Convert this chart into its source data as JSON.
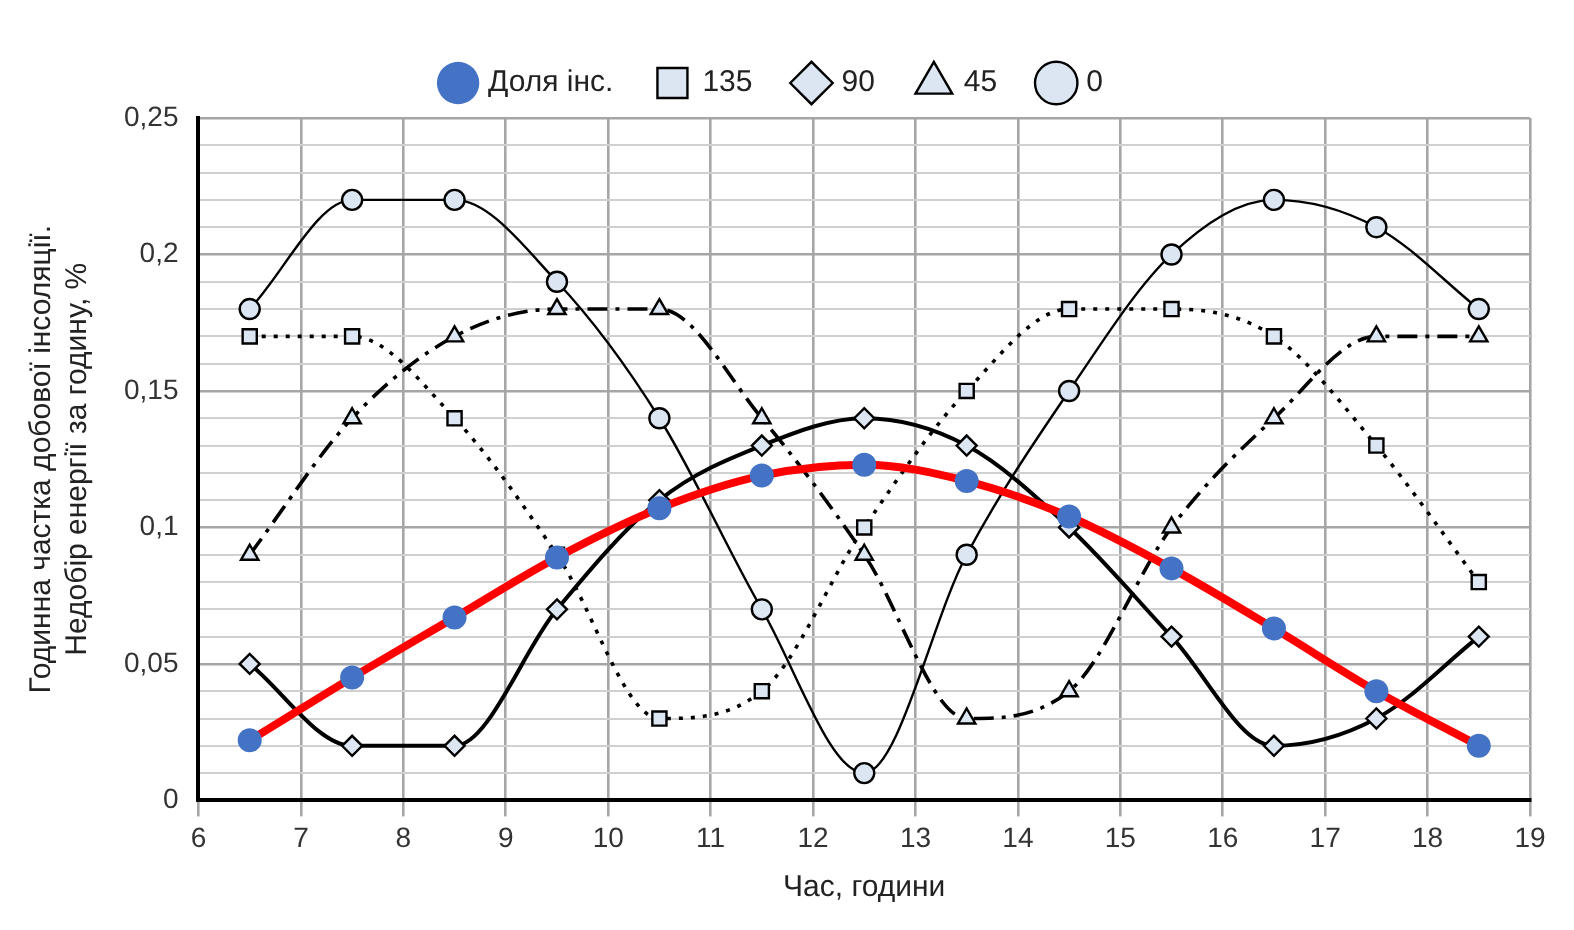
{
  "chart_data": {
    "type": "line",
    "xlabel": "Час, години",
    "ylabel": "Годинна частка добової інсоляції.\nНедобір енергії за годину, %",
    "xlim": [
      6,
      19
    ],
    "xticks": [
      6,
      7,
      8,
      9,
      10,
      11,
      12,
      13,
      14,
      15,
      16,
      17,
      18,
      19
    ],
    "ylim": [
      0,
      0.25
    ],
    "yticks": [
      0,
      {
        "value": 0.01,
        "label": null
      },
      {
        "value": 0.02,
        "label": null
      },
      {
        "value": 0.03,
        "label": null
      },
      {
        "value": 0.04,
        "label": null
      },
      {
        "value": 0.05,
        "label": "0,05"
      },
      {
        "value": 0.06,
        "label": null
      },
      {
        "value": 0.07,
        "label": null
      },
      {
        "value": 0.08,
        "label": null
      },
      {
        "value": 0.09,
        "label": null
      },
      {
        "value": 0.1,
        "label": "0,1"
      },
      {
        "value": 0.11,
        "label": null
      },
      {
        "value": 0.12,
        "label": null
      },
      {
        "value": 0.13,
        "label": null
      },
      {
        "value": 0.14,
        "label": null
      },
      {
        "value": 0.15,
        "label": "0,15"
      },
      {
        "value": 0.16,
        "label": null
      },
      {
        "value": 0.17,
        "label": null
      },
      {
        "value": 0.18,
        "label": null
      },
      {
        "value": 0.19,
        "label": null
      },
      {
        "value": 0.2,
        "label": "0,2"
      },
      {
        "value": 0.21,
        "label": null
      },
      {
        "value": 0.22,
        "label": null
      },
      {
        "value": 0.23,
        "label": null
      },
      {
        "value": 0.24,
        "label": null
      },
      {
        "value": 0.25,
        "label": "0,25"
      }
    ],
    "x": [
      6.5,
      7.5,
      8.5,
      9.5,
      10.5,
      11.5,
      12.5,
      13.5,
      14.5,
      15.5,
      16.5,
      17.5,
      18.5
    ],
    "grid": true,
    "legend": "top",
    "series": [
      {
        "name": "0",
        "color": "#000000",
        "marker": "circle",
        "line_style": "solid",
        "values": [
          0.18,
          0.22,
          0.22,
          0.19,
          0.14,
          0.07,
          0.01,
          0.09,
          0.15,
          0.2,
          0.22,
          0.21,
          0.18
        ]
      },
      {
        "name": "45",
        "color": "#000000",
        "marker": "triangle",
        "line_style": "dashed",
        "values": [
          0.09,
          0.14,
          0.17,
          0.18,
          0.18,
          0.14,
          0.09,
          0.03,
          0.04,
          0.1,
          0.14,
          0.17,
          0.17
        ]
      },
      {
        "name": "90",
        "color": "#000000",
        "marker": "diamond",
        "line_style": "solid",
        "values": [
          0.05,
          0.02,
          0.02,
          0.07,
          0.11,
          0.13,
          0.14,
          0.13,
          0.1,
          0.06,
          0.02,
          0.03,
          0.06
        ]
      },
      {
        "name": "135",
        "color": "#000000",
        "marker": "square",
        "line_style": "dotted",
        "values": [
          0.17,
          0.17,
          0.14,
          0.09,
          0.03,
          0.04,
          0.1,
          0.15,
          0.18,
          0.18,
          0.17,
          0.13,
          0.08
        ]
      },
      {
        "name": "Доля інс.",
        "color": "#ff0000",
        "marker": "circle",
        "line_style": "solid",
        "colors": [
          "#4472c4",
          "#4472c4",
          "#4472c4",
          "#4472c4",
          "#4472c4",
          "#4472c4",
          "#4472c4",
          "#4472c4",
          "#4472c4",
          "#4472c4",
          "#4472c4",
          "#4472c4",
          "#4472c4"
        ],
        "values": [
          0.022,
          0.045,
          0.067,
          0.089,
          0.107,
          0.119,
          0.123,
          0.117,
          0.104,
          0.085,
          0.063,
          0.04,
          0.02
        ]
      }
    ]
  }
}
